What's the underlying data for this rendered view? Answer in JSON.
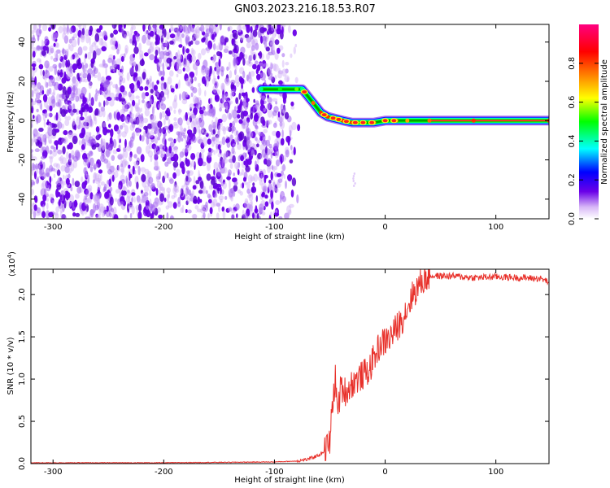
{
  "title": "GN03.2023.216.18.53.R07",
  "chart_data": [
    {
      "type": "heatmap",
      "xlabel": "Height of straight line (km)",
      "ylabel": "Frequency (Hz)",
      "xlim": [
        -320,
        148
      ],
      "ylim": [
        -50,
        49
      ],
      "xticks": [
        -300,
        -200,
        -100,
        0,
        100
      ],
      "yticks": [
        -40,
        -20,
        0,
        20,
        40
      ],
      "colorbar": {
        "label": "Normalized spectral amplitude",
        "range": [
          0.0,
          1.0
        ],
        "ticks": [
          "0.0",
          "0.2",
          "0.4",
          "0.6",
          "0.8"
        ],
        "colors": [
          "#ffffff",
          "#c9a0f5",
          "#6a00e8",
          "#0000ff",
          "#00ffff",
          "#00ff00",
          "#ffff00",
          "#ff8000",
          "#ff0000",
          "#ff0080"
        ]
      },
      "noise_region_x": [
        -320,
        -85
      ],
      "ridge": {
        "x": [
          -112,
          -95,
          -80,
          -75,
          -65,
          -58,
          -52,
          -45,
          -38,
          -30,
          -20,
          -10,
          0,
          10,
          20,
          40,
          80,
          148
        ],
        "y": [
          16,
          16,
          16,
          16,
          9,
          4,
          2,
          1,
          0,
          -1,
          -1,
          -1,
          0,
          0,
          0,
          0,
          0,
          0
        ],
        "amplitude": [
          0.5,
          0.55,
          0.6,
          0.5,
          0.8,
          0.85,
          0.85,
          0.9,
          0.9,
          0.85,
          0.8,
          0.8,
          0.85,
          0.8,
          0.75,
          0.8,
          0.85,
          0.85
        ]
      },
      "hot_spots_x": [
        -73,
        -55,
        -47,
        -42,
        -35,
        -27,
        -20,
        -12,
        0,
        8
      ]
    },
    {
      "type": "line",
      "xlabel": "Height of straight line (km)",
      "ylabel": "SNR (10 * v/v)",
      "y_multiplier": "(x10",
      "y_multiplier_exp": "4",
      "y_multiplier_close": ")",
      "xlim": [
        -320,
        148
      ],
      "ylim": [
        0,
        2.3
      ],
      "xticks": [
        -300,
        -200,
        -100,
        0,
        100
      ],
      "yticks": [
        "0.0",
        "0.5",
        "1.0",
        "1.5",
        "2.0"
      ],
      "series": [
        {
          "color": "#e8302a",
          "x": [
            -320,
            -200,
            -100,
            -80,
            -70,
            -60,
            -55,
            -50,
            -47,
            -45,
            -43,
            -40,
            -35,
            -30,
            -25,
            -20,
            -15,
            -10,
            -5,
            0,
            5,
            10,
            15,
            20,
            25,
            30,
            35,
            40,
            60,
            80,
            100,
            120,
            140,
            148
          ],
          "y": [
            0.01,
            0.01,
            0.02,
            0.03,
            0.05,
            0.1,
            0.15,
            0.25,
            0.8,
            1.0,
            0.6,
            0.9,
            0.85,
            0.95,
            1.0,
            1.05,
            1.1,
            1.25,
            1.4,
            1.45,
            1.5,
            1.6,
            1.7,
            1.85,
            2.0,
            2.1,
            2.18,
            2.22,
            2.22,
            2.2,
            2.21,
            2.2,
            2.19,
            2.15
          ]
        }
      ]
    }
  ]
}
